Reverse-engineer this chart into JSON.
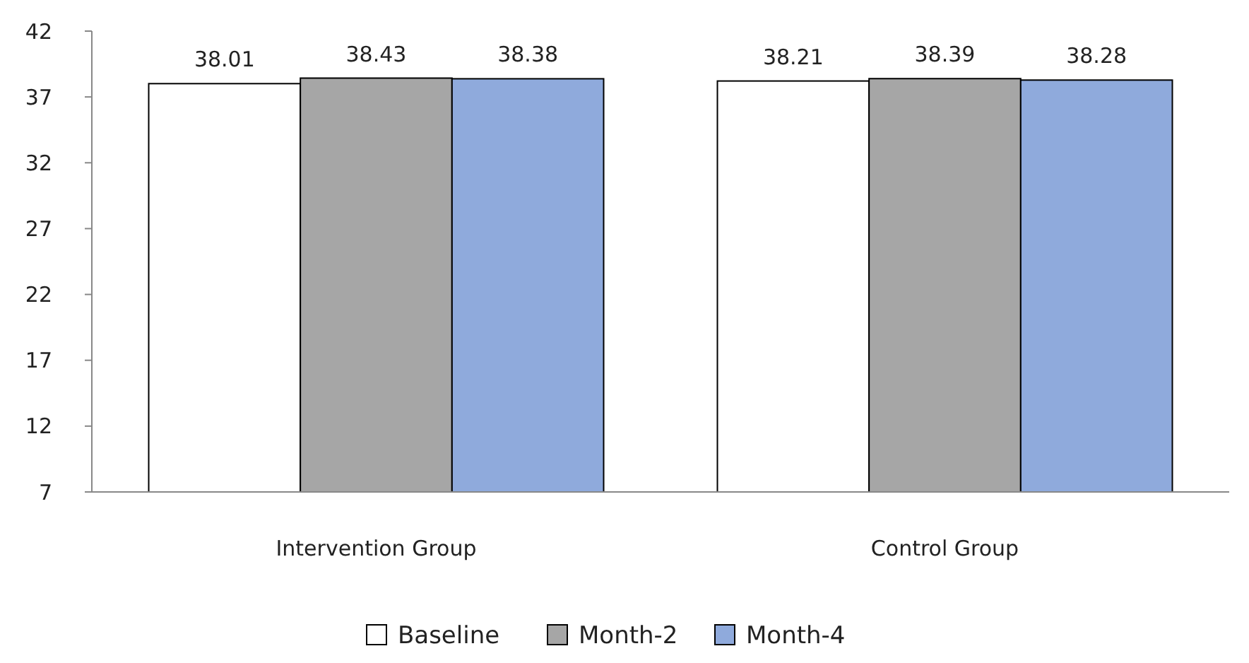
{
  "chart_data": {
    "type": "bar",
    "categories": [
      "Intervention Group",
      "Control Group"
    ],
    "series": [
      {
        "name": "Baseline",
        "color": "#ffffff",
        "values": [
          38.01,
          38.21
        ]
      },
      {
        "name": "Month-2",
        "color": "#a6a6a6",
        "values": [
          38.43,
          38.39
        ]
      },
      {
        "name": "Month-4",
        "color": "#8faadc",
        "values": [
          38.38,
          38.28
        ]
      }
    ],
    "ylim": [
      7,
      42
    ],
    "yticks": [
      7,
      12,
      17,
      22,
      27,
      32,
      37,
      42
    ],
    "grid": false,
    "legend": "bottom",
    "data_labels": true
  }
}
